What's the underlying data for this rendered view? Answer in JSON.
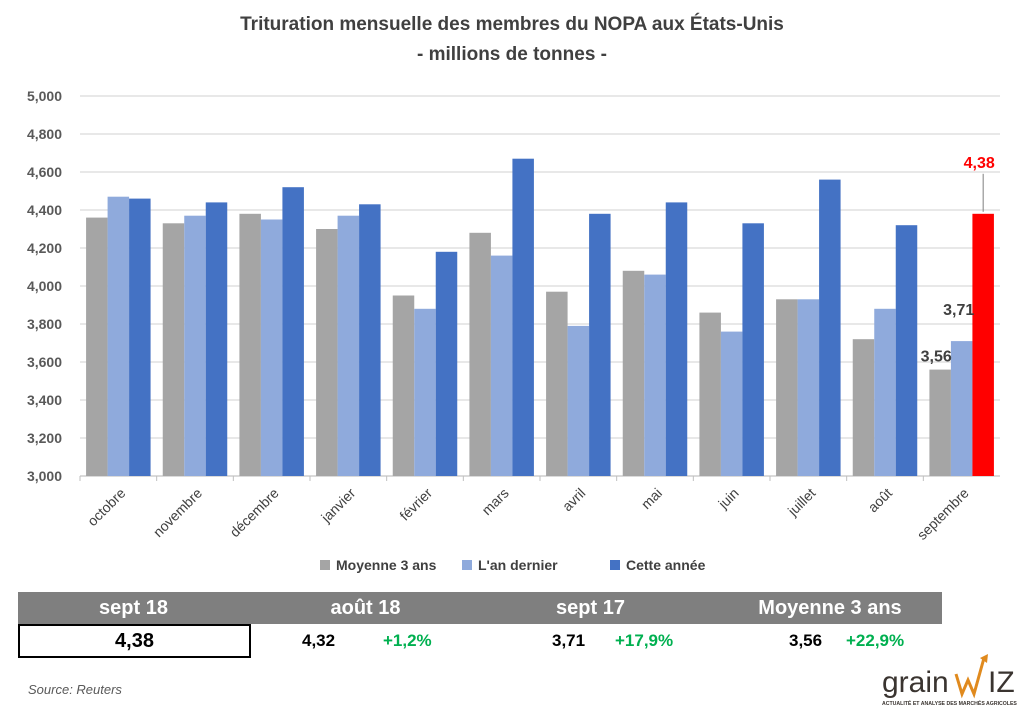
{
  "chart_data": {
    "type": "bar",
    "title": "Trituration mensuelle des membres du NOPA aux États-Unis",
    "subtitle": "- millions de tonnes -",
    "xlabel": "",
    "ylabel": "",
    "ylim": [
      3.0,
      5.0
    ],
    "yticks": [
      "3,000",
      "3,200",
      "3,400",
      "3,600",
      "3,800",
      "4,000",
      "4,200",
      "4,400",
      "4,600",
      "4,800",
      "5,000"
    ],
    "grid": true,
    "legend_position": "bottom",
    "categories": [
      "octobre",
      "novembre",
      "décembre",
      "janvier",
      "février",
      "mars",
      "avril",
      "mai",
      "juin",
      "juillet",
      "août",
      "septembre"
    ],
    "series": [
      {
        "name": "Moyenne 3 ans",
        "color": "#a5a5a5",
        "values": [
          4.36,
          4.33,
          4.38,
          4.3,
          3.95,
          4.28,
          3.97,
          4.08,
          3.86,
          3.93,
          3.72,
          3.56
        ]
      },
      {
        "name": "L'an dernier",
        "color": "#8faadc",
        "values": [
          4.47,
          4.37,
          4.35,
          4.37,
          3.88,
          4.16,
          3.79,
          4.06,
          3.76,
          3.93,
          3.88,
          3.71
        ]
      },
      {
        "name": "Cette année",
        "color": "#4472c4",
        "values": [
          4.46,
          4.44,
          4.52,
          4.43,
          4.18,
          4.67,
          4.38,
          4.44,
          4.33,
          4.56,
          4.32,
          4.38
        ]
      }
    ],
    "highlight": {
      "category": "septembre",
      "series": "Cette année",
      "color": "#ff0000"
    },
    "data_labels": [
      {
        "category": "septembre",
        "series": "Moyenne 3 ans",
        "text": "3,56",
        "color": "#404040"
      },
      {
        "category": "septembre",
        "series": "L'an dernier",
        "text": "3,71",
        "color": "#404040"
      },
      {
        "category": "septembre",
        "series": "Cette année",
        "text": "4,38",
        "color": "#ff0000"
      }
    ]
  },
  "summary": {
    "headers": [
      "sept 18",
      "août 18",
      "sept 17",
      "Moyenne 3 ans"
    ],
    "current": "4,38",
    "comparisons": [
      {
        "value": "4,32",
        "change": "+1,2%"
      },
      {
        "value": "3,71",
        "change": "+17,9%"
      },
      {
        "value": "3,56",
        "change": "+22,9%"
      }
    ],
    "positive_color": "#00b050"
  },
  "source": "Source: Reuters",
  "logo": {
    "text": "grainwiz",
    "tagline": "ACTUALITÉ ET ANALYSE DES MARCHÉS AGRICOLES"
  }
}
